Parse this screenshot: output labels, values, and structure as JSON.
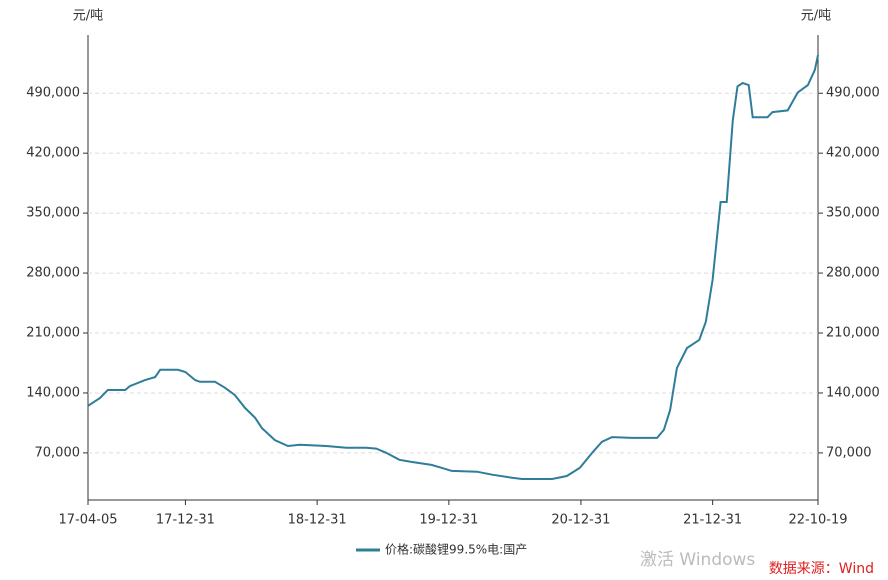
{
  "chart_data": {
    "type": "line",
    "y_unit": "元/吨",
    "x": [
      "17-04-05",
      "17-05-08",
      "17-05-30",
      "17-07-17",
      "17-07-30",
      "17-09-10",
      "17-10-08",
      "17-10-22",
      "17-12-10",
      "17-12-31",
      "18-01-27",
      "18-02-09",
      "18-03-23",
      "18-04-20",
      "18-05-17",
      "18-06-14",
      "18-07-12",
      "18-07-31",
      "18-09-05",
      "18-10-11",
      "18-11-13",
      "19-01-25",
      "19-03-22",
      "19-05-16",
      "19-06-13",
      "19-07-11",
      "19-08-16",
      "19-09-18",
      "19-11-13",
      "19-12-12",
      "20-01-08",
      "20-03-18",
      "20-04-29",
      "20-06-23",
      "20-07-21",
      "20-10-12",
      "20-11-22",
      "20-12-28",
      "21-01-31",
      "21-02-27",
      "21-03-27",
      "21-05-22",
      "21-07-30",
      "21-08-18",
      "21-09-04",
      "21-09-23",
      "21-10-21",
      "21-11-24",
      "21-12-12",
      "21-12-31",
      "22-01-22",
      "22-02-08",
      "22-02-25",
      "22-03-10",
      "22-03-24",
      "22-04-10",
      "22-04-21",
      "22-06-01",
      "22-06-15",
      "22-07-27",
      "22-08-24",
      "22-09-21",
      "22-10-10",
      "22-10-19"
    ],
    "series": [
      {
        "name": "价格:碳酸锂99.5%电:国产",
        "color": "#2e7d9a",
        "values": [
          125000,
          134000,
          143500,
          143500,
          148000,
          155000,
          158500,
          167000,
          167000,
          164500,
          155000,
          153000,
          153000,
          146000,
          137500,
          122500,
          111000,
          99000,
          85000,
          78000,
          79500,
          78000,
          76000,
          76000,
          75000,
          70000,
          62000,
          59500,
          56000,
          52500,
          49000,
          48000,
          44500,
          41000,
          39500,
          39500,
          43000,
          52500,
          70000,
          83000,
          88500,
          87500,
          87500,
          97000,
          120000,
          169000,
          192500,
          202000,
          223000,
          272000,
          363000,
          363000,
          458500,
          498000,
          502000,
          499500,
          462000,
          462000,
          468000,
          470000,
          491000,
          499500,
          517000,
          534500
        ]
      }
    ],
    "xlim": [
      "17-04-05",
      "22-10-19"
    ],
    "xticks": [
      "17-04-05",
      "17-12-31",
      "18-12-31",
      "19-12-31",
      "20-12-31",
      "21-12-31",
      "22-10-19"
    ],
    "ylim": [
      15000,
      558000
    ],
    "yticks": [
      {
        "value": 70000,
        "label": "70,000"
      },
      {
        "value": 140000,
        "label": "140,000"
      },
      {
        "value": 210000,
        "label": "210,000"
      },
      {
        "value": 280000,
        "label": "280,000"
      },
      {
        "value": 350000,
        "label": "350,000"
      },
      {
        "value": 420000,
        "label": "420,000"
      },
      {
        "value": 490000,
        "label": "490,000"
      }
    ],
    "grid": true,
    "source": "数据来源：Wind",
    "watermark": "激活 Windows"
  }
}
